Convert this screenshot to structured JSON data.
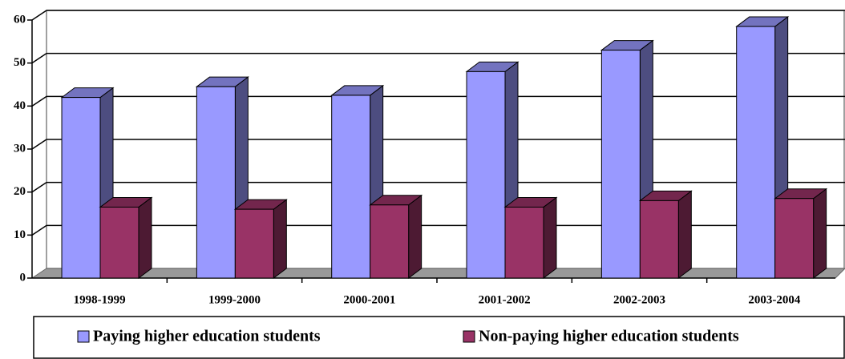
{
  "chart_data": {
    "type": "bar3d",
    "categories": [
      "1998-1999",
      "1999-2000",
      "2000-2001",
      "2001-2002",
      "2002-2003",
      "2003-2004"
    ],
    "series": [
      {
        "name": "Paying higher education students",
        "color": "#9999ff",
        "values": [
          42,
          44.5,
          42.5,
          48,
          53,
          58.5
        ]
      },
      {
        "name": "Non-paying higher education students",
        "color": "#993366",
        "values": [
          16.5,
          16,
          17,
          16.5,
          18,
          18.5
        ]
      }
    ],
    "ylim": [
      0,
      60
    ],
    "yticks": [
      0,
      10,
      20,
      30,
      40,
      50,
      60
    ],
    "grid": true,
    "legend": "bottom"
  }
}
